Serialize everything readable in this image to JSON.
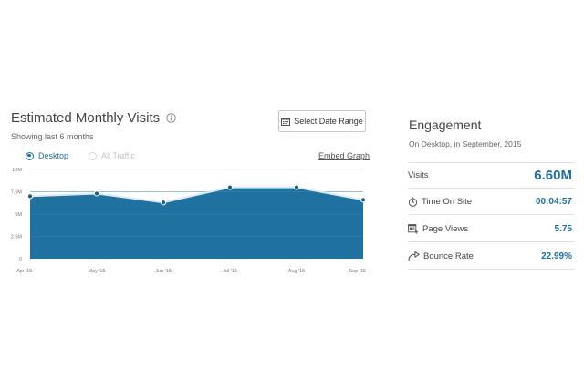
{
  "visits_panel": {
    "title": "Estimated Monthly Visits",
    "subtitle": "Showing last 6 months",
    "date_button_label": "Select Date Range",
    "radio_desktop": "Desktop",
    "radio_all_traffic": "All Traffic",
    "embed_link": "Embed Graph"
  },
  "chart_data": {
    "type": "area",
    "categories": [
      "Apr '15",
      "May '15",
      "Jun '15",
      "Jul '15",
      "Aug '15",
      "Sep '15"
    ],
    "series": [
      {
        "values": [
          7.0,
          7.3,
          6.3,
          8.0,
          8.0,
          6.6
        ]
      }
    ],
    "y_ticks": [
      "10M",
      "7.5M",
      "5M",
      "2.5M",
      "0"
    ],
    "ylim": [
      0,
      10
    ],
    "y_unit": "M",
    "grid": true,
    "fill_color": "#1f72a0",
    "line_color": "#dce9f2",
    "point_color": "#1a5d87"
  },
  "engagement": {
    "title": "Engagement",
    "subtitle": "On Desktop, in September, 2015",
    "metrics": [
      {
        "label": "Visits",
        "value": "6.60M",
        "icon": ""
      },
      {
        "label": "Time On Site",
        "value": "00:04:57",
        "icon": "stopwatch-icon"
      },
      {
        "label": "Page Views",
        "value": "5.75",
        "icon": "page-views-icon"
      },
      {
        "label": "Bounce Rate",
        "value": "22.99%",
        "icon": "bounce-arrow-icon"
      }
    ]
  },
  "colors": {
    "accent": "#1f6f9f",
    "area": "#1f72a0"
  }
}
